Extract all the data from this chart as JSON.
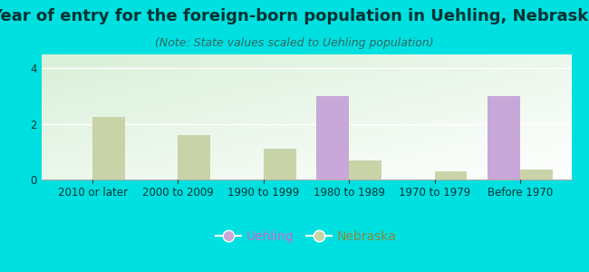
{
  "title": "Year of entry for the foreign-born population in Uehling, Nebraska",
  "subtitle": "(Note: State values scaled to Uehling population)",
  "categories": [
    "2010 or later",
    "2000 to 2009",
    "1990 to 1999",
    "1980 to 1989",
    "1970 to 1979",
    "Before 1970"
  ],
  "uehling_values": [
    0,
    0,
    0,
    3.0,
    0,
    3.0
  ],
  "nebraska_values": [
    2.25,
    1.6,
    1.1,
    0.7,
    0.3,
    0.35
  ],
  "uehling_color": "#c8a8d8",
  "nebraska_color": "#c8d4a8",
  "background_outer": "#00e0e0",
  "background_plot_tl": "#d8edd8",
  "background_plot_br": "#f5fff5",
  "ylim": [
    0,
    4.5
  ],
  "yticks": [
    0,
    2,
    4
  ],
  "bar_width": 0.38,
  "title_fontsize": 13,
  "subtitle_fontsize": 9,
  "tick_fontsize": 8.5,
  "legend_fontsize": 10,
  "title_color": "#003333",
  "subtitle_color": "#336666",
  "tick_color": "#003333"
}
